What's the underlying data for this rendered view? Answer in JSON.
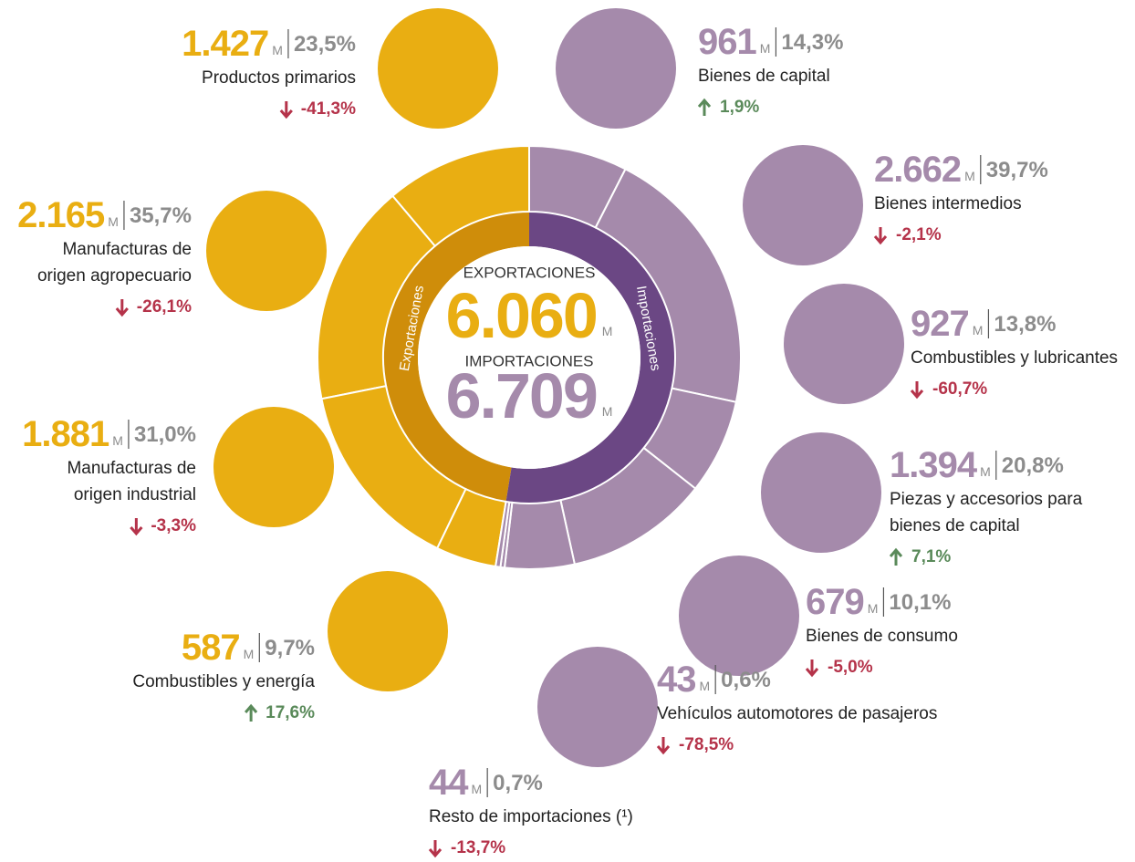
{
  "chart_data": {
    "type": "donut",
    "unit": "M",
    "rings": [
      {
        "name": "Exportaciones",
        "total_label": "EXPORTACIONES",
        "total": 6060,
        "total_value_label": "6.060",
        "color": "#e9ae12",
        "inner_color": "#cf8d0a",
        "items": [
          {
            "name": [
              "Productos primarios"
            ],
            "value": 1427,
            "value_label": "1.427",
            "share": 23.5,
            "share_label": "23,5%",
            "change": -41.3,
            "change_label": "-41,3%"
          },
          {
            "name": [
              "Manufacturas de",
              "origen agropecuario"
            ],
            "value": 2165,
            "value_label": "2.165",
            "share": 35.7,
            "share_label": "35,7%",
            "change": -26.1,
            "change_label": "-26,1%"
          },
          {
            "name": [
              "Manufacturas de",
              "origen industrial"
            ],
            "value": 1881,
            "value_label": "1.881",
            "share": 31.0,
            "share_label": "31,0%",
            "change": -3.3,
            "change_label": "-3,3%"
          },
          {
            "name": [
              "Combustibles y energía"
            ],
            "value": 587,
            "value_label": "587",
            "share": 9.7,
            "share_label": "9,7%",
            "change": 17.6,
            "change_label": "17,6%"
          }
        ]
      },
      {
        "name": "Importaciones",
        "total_label": "IMPORTACIONES",
        "total": 6709,
        "total_value_label": "6.709",
        "color": "#a58aab",
        "inner_color": "#6b4784",
        "items": [
          {
            "name": [
              "Bienes de capital"
            ],
            "value": 961,
            "value_label": "961",
            "share": 14.3,
            "share_label": "14,3%",
            "change": 1.9,
            "change_label": "1,9%"
          },
          {
            "name": [
              "Bienes intermedios"
            ],
            "value": 2662,
            "value_label": "2.662",
            "share": 39.7,
            "share_label": "39,7%",
            "change": -2.1,
            "change_label": "-2,1%"
          },
          {
            "name": [
              "Combustibles y lubricantes"
            ],
            "value": 927,
            "value_label": "927",
            "share": 13.8,
            "share_label": "13,8%",
            "change": -60.7,
            "change_label": "-60,7%"
          },
          {
            "name": [
              "Piezas y accesorios para",
              "bienes de capital"
            ],
            "value": 1394,
            "value_label": "1.394",
            "share": 20.8,
            "share_label": "20,8%",
            "change": 7.1,
            "change_label": "7,1%"
          },
          {
            "name": [
              "Bienes de consumo"
            ],
            "value": 679,
            "value_label": "679",
            "share": 10.1,
            "share_label": "10,1%",
            "change": -5.0,
            "change_label": "-5,0%"
          },
          {
            "name": [
              "Vehículos automotores de pasajeros"
            ],
            "value": 43,
            "value_label": "43",
            "share": 0.6,
            "share_label": "0,6%",
            "change": -78.5,
            "change_label": "-78,5%"
          },
          {
            "name": [
              "Resto de importaciones (¹)"
            ],
            "value": 44,
            "value_label": "44",
            "share": 0.7,
            "share_label": "0,7%",
            "change": -13.7,
            "change_label": "-13,7%"
          }
        ]
      }
    ]
  }
}
